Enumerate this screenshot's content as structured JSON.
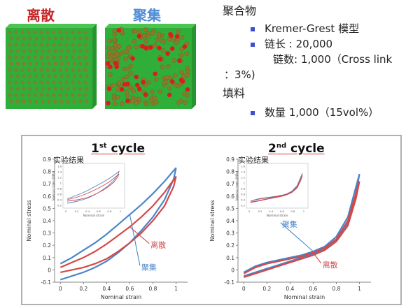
{
  "top": {
    "dispersed_label": "离散",
    "aggregated_label": "聚集",
    "label_colors": {
      "dispersed": "#c62828",
      "aggregated": "#4f8bd6"
    },
    "cube_colors": {
      "box": "#2fae3a",
      "particle": "#8a7a2a",
      "surface_particle": "#d62020"
    }
  },
  "info": {
    "polymer_heading": "聚合物",
    "polymer_items": [
      "Kremer-Grest 模型",
      "链长 : 20,000"
    ],
    "chain_count_line": "链数: 1,000（Cross link",
    "chain_count_cont": "：3%)",
    "filler_heading": "填料",
    "filler_items": [
      "数量 1,000（15vol%）"
    ]
  },
  "colors": {
    "aggregated": "#4a86c8",
    "dispersed": "#d44848"
  },
  "chart_data": [
    {
      "type": "line",
      "title_main": "1",
      "title_sup": "st",
      "title_rest": " cycle",
      "inset_label": "实验结果",
      "xlabel": "Nominal strain",
      "ylabel": "Nominal stress",
      "xlim": [
        -0.05,
        1.1
      ],
      "ylim": [
        -0.1,
        0.9
      ],
      "xticks": [
        "0",
        "0.2",
        "0.4",
        "0.6",
        "0.8",
        "1"
      ],
      "yticks": [
        "-0.1",
        "0",
        "0.1",
        "0.2",
        "0.3",
        "0.4",
        "0.5",
        "0.6",
        "0.7",
        "0.8",
        "0.9"
      ],
      "series": [
        {
          "name": "聚集",
          "color": "#4a86c8",
          "x": [
            0,
            0.1,
            0.2,
            0.3,
            0.4,
            0.5,
            0.6,
            0.7,
            0.8,
            0.9,
            1.0,
            0.98,
            0.9,
            0.8,
            0.7,
            0.6,
            0.5,
            0.4,
            0.3,
            0.2,
            0.1,
            0
          ],
          "y": [
            0.05,
            0.1,
            0.16,
            0.22,
            0.29,
            0.37,
            0.45,
            0.53,
            0.62,
            0.72,
            0.83,
            0.74,
            0.57,
            0.43,
            0.32,
            0.22,
            0.14,
            0.07,
            0.02,
            -0.02,
            -0.05,
            -0.08
          ]
        },
        {
          "name": "离散",
          "color": "#d44848",
          "x": [
            0,
            0.1,
            0.2,
            0.3,
            0.4,
            0.5,
            0.6,
            0.7,
            0.8,
            0.9,
            1.0,
            0.98,
            0.9,
            0.8,
            0.7,
            0.6,
            0.5,
            0.4,
            0.3,
            0.2,
            0.1,
            0
          ],
          "y": [
            0.02,
            0.06,
            0.1,
            0.15,
            0.21,
            0.28,
            0.35,
            0.43,
            0.52,
            0.63,
            0.76,
            0.68,
            0.52,
            0.4,
            0.3,
            0.22,
            0.15,
            0.09,
            0.05,
            0.02,
            0.0,
            -0.02
          ]
        }
      ],
      "annotations": [
        {
          "text": "离散",
          "series": "离散",
          "x": 0.78,
          "y": 0.18
        },
        {
          "text": "聚集",
          "series": "聚集",
          "x": 0.7,
          "y": 0.0
        }
      ],
      "inset": {
        "xlabel": "Nominal strain",
        "ylabel": "Nominal stress[MPa]",
        "xticks": [
          "0",
          "0.2",
          "0.4",
          "0.6",
          "0.8",
          "1"
        ],
        "yticks": [
          "0.2",
          "0.4",
          "0.6",
          "0.8",
          "1",
          "1.2",
          "1.4",
          "1.6"
        ]
      }
    },
    {
      "type": "line",
      "title_main": "2",
      "title_sup": "nd",
      "title_rest": " cycle",
      "inset_label": "实验结果",
      "xlabel": "Nominal strain",
      "ylabel": "Nominal stress",
      "xlim": [
        -0.05,
        1.1
      ],
      "ylim": [
        -0.1,
        0.9
      ],
      "xticks": [
        "0",
        "0.2",
        "0.4",
        "0.6",
        "0.8",
        "1"
      ],
      "yticks": [
        "-0.1",
        "0",
        "0.1",
        "0.2",
        "0.3",
        "0.4",
        "0.5",
        "0.6",
        "0.7",
        "0.8",
        "0.9"
      ],
      "series": [
        {
          "name": "聚集",
          "color": "#4a86c8",
          "x": [
            0,
            0.1,
            0.2,
            0.3,
            0.4,
            0.5,
            0.6,
            0.7,
            0.8,
            0.9,
            1.0,
            0.97,
            0.9,
            0.8,
            0.7,
            0.6,
            0.5,
            0.4,
            0.3,
            0.2,
            0.1,
            0
          ],
          "y": [
            -0.02,
            0.03,
            0.06,
            0.08,
            0.1,
            0.12,
            0.15,
            0.19,
            0.27,
            0.43,
            0.78,
            0.62,
            0.38,
            0.24,
            0.17,
            0.13,
            0.1,
            0.07,
            0.04,
            0.01,
            -0.02,
            -0.05
          ]
        },
        {
          "name": "离散",
          "color": "#d44848",
          "x": [
            0,
            0.1,
            0.2,
            0.3,
            0.4,
            0.5,
            0.6,
            0.7,
            0.8,
            0.9,
            1.0,
            0.97,
            0.9,
            0.8,
            0.7,
            0.6,
            0.5,
            0.4,
            0.3,
            0.2,
            0.1,
            0
          ],
          "y": [
            -0.03,
            0.02,
            0.05,
            0.07,
            0.09,
            0.11,
            0.14,
            0.18,
            0.25,
            0.4,
            0.72,
            0.58,
            0.36,
            0.23,
            0.16,
            0.12,
            0.09,
            0.06,
            0.03,
            0.0,
            -0.03,
            -0.06
          ]
        }
      ],
      "annotations": [
        {
          "text": "聚集",
          "series": "聚集",
          "x": 0.33,
          "y": 0.35
        },
        {
          "text": "离散",
          "series": "离散",
          "x": 0.68,
          "y": 0.02
        }
      ],
      "inset": {
        "xlabel": "Nominal strain",
        "ylabel": "Nominal stress[MPa]",
        "xticks": [
          "0",
          "0.2",
          "0.4",
          "0.6",
          "0.8",
          "1"
        ],
        "yticks": [
          "0.2",
          "0.4",
          "0.6",
          "0.8",
          "1",
          "1.2",
          "1.4",
          "1.6"
        ]
      }
    }
  ]
}
